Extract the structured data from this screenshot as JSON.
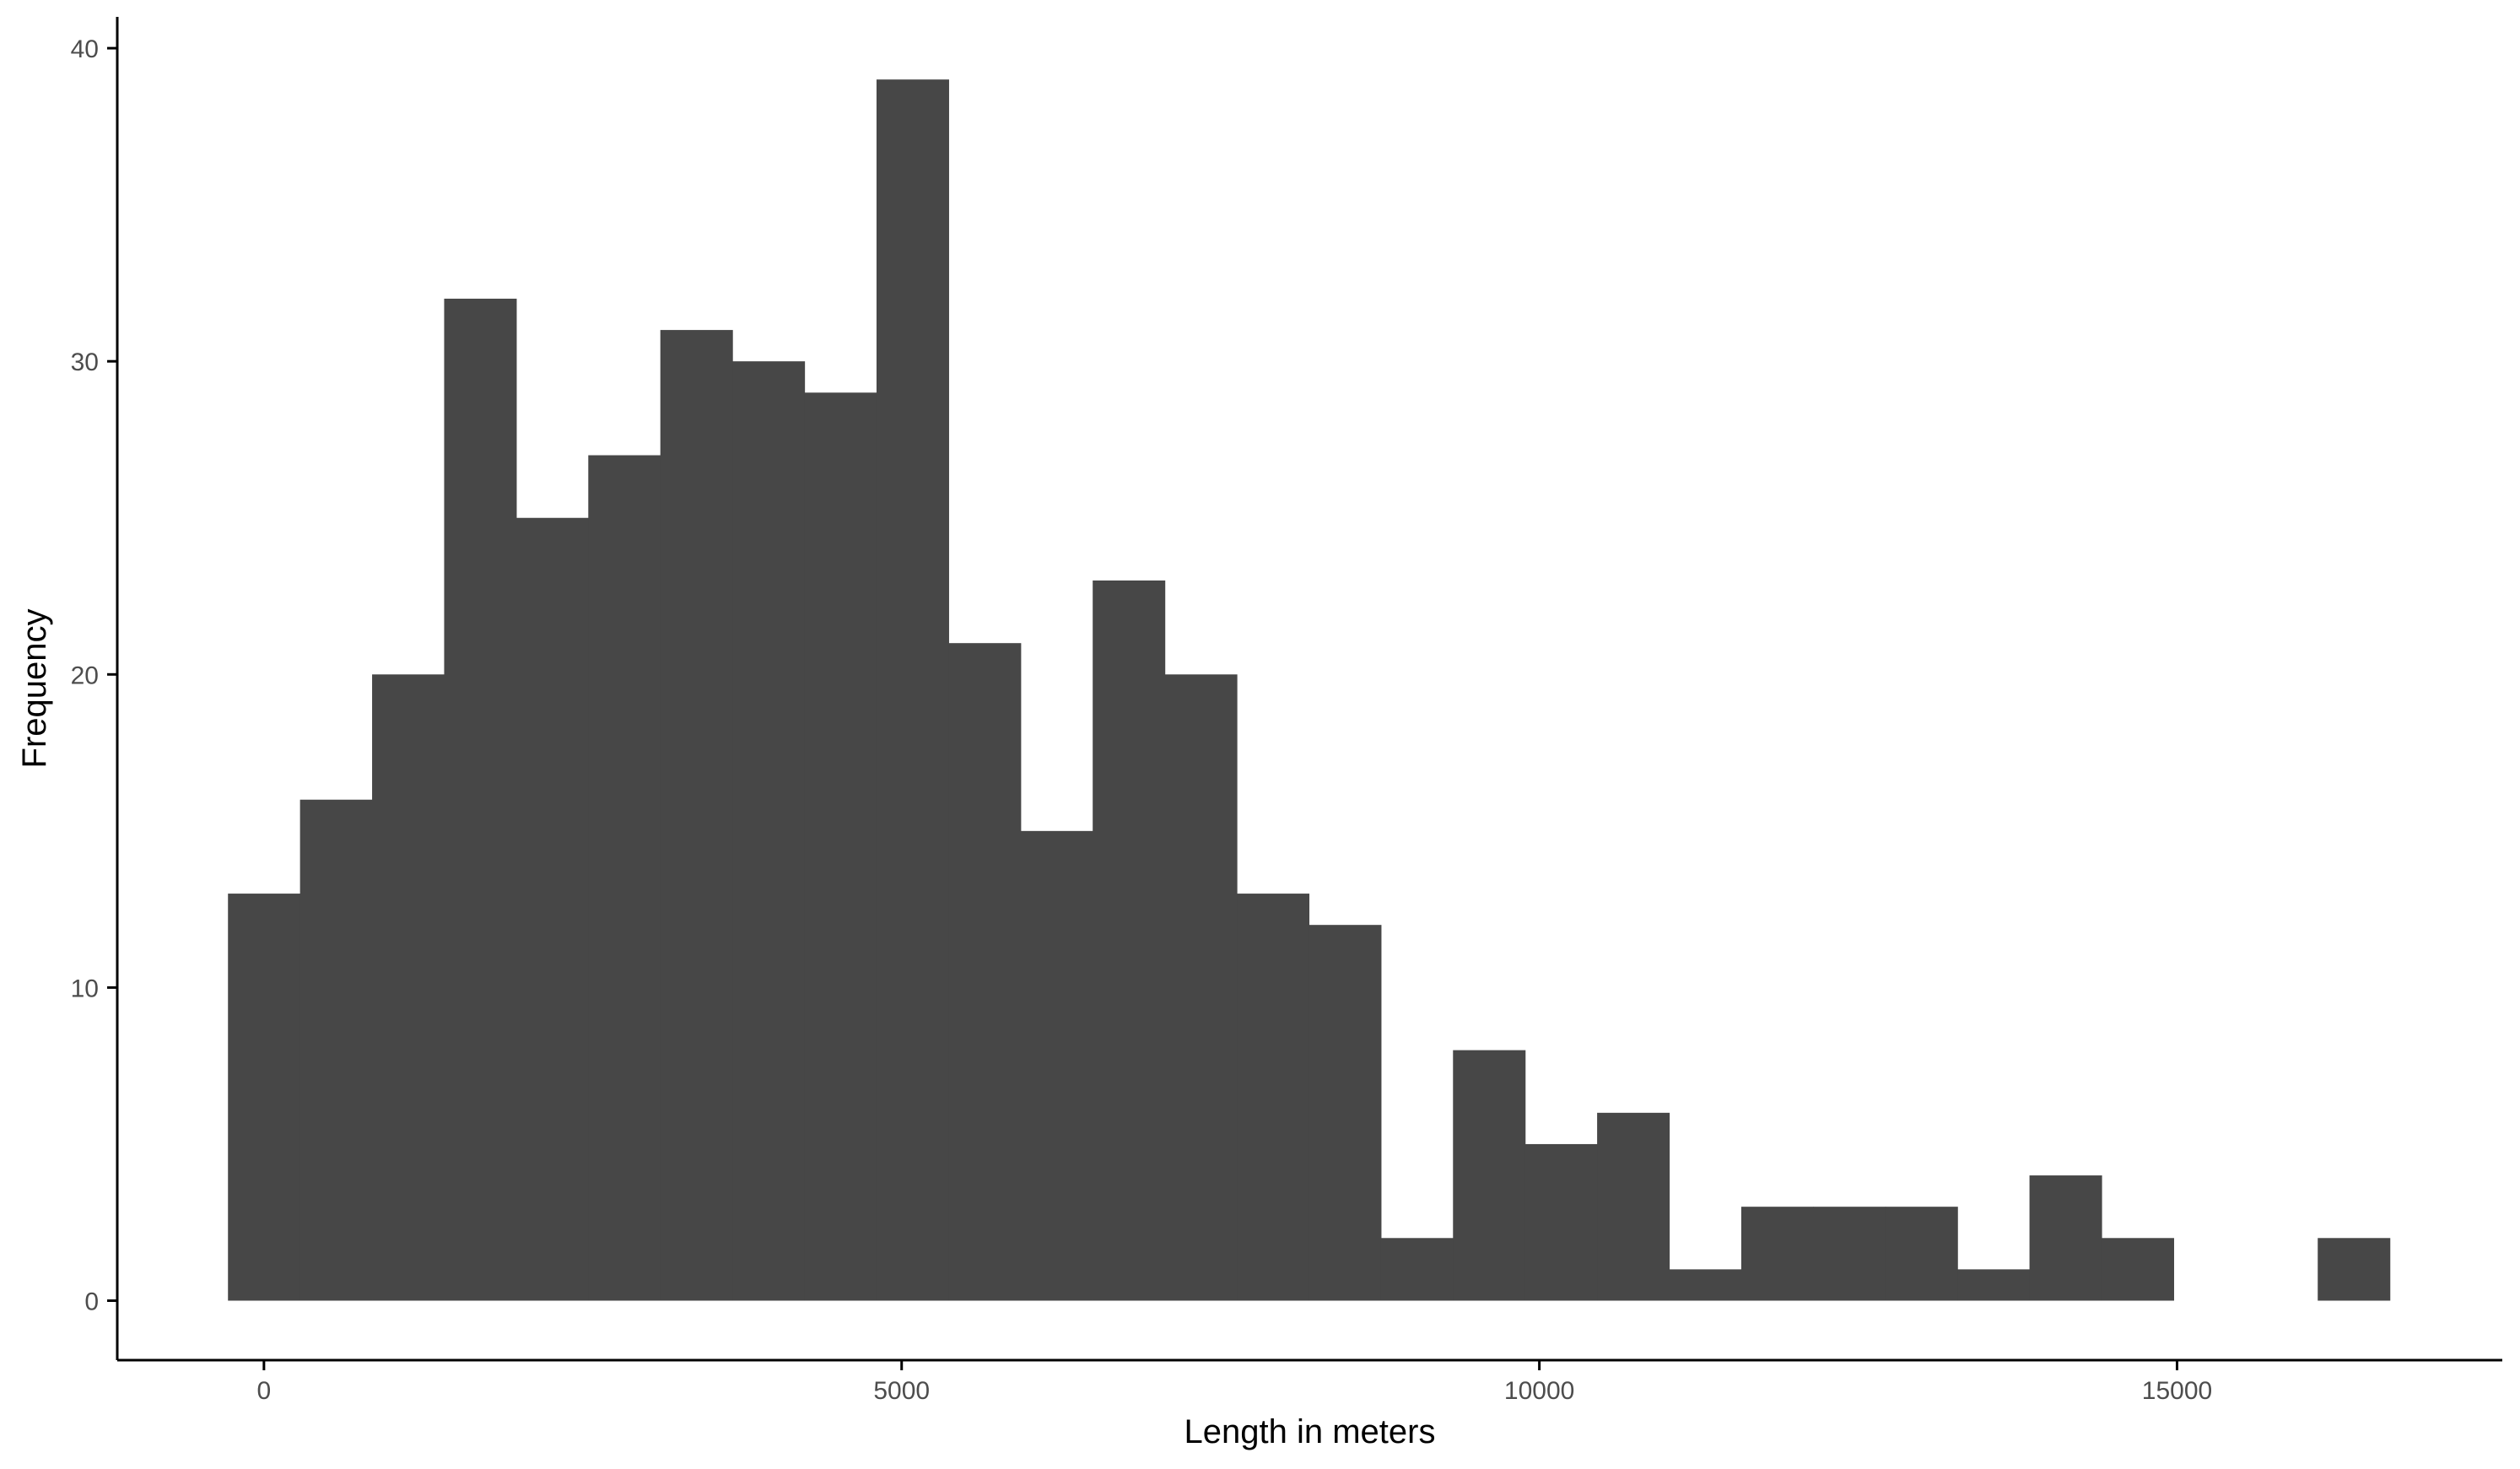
{
  "chart_data": {
    "type": "bar",
    "title": "",
    "xlabel": "Length in meters",
    "ylabel": "Frequency",
    "bin_width": 565,
    "bins": [
      {
        "x0": -282,
        "x1": 283,
        "count": 13
      },
      {
        "x0": 283,
        "x1": 848,
        "count": 16
      },
      {
        "x0": 848,
        "x1": 1413,
        "count": 20
      },
      {
        "x0": 1413,
        "x1": 1978,
        "count": 32
      },
      {
        "x0": 1978,
        "x1": 2543,
        "count": 25
      },
      {
        "x0": 2543,
        "x1": 3108,
        "count": 27
      },
      {
        "x0": 3108,
        "x1": 3673,
        "count": 31
      },
      {
        "x0": 3673,
        "x1": 4238,
        "count": 30
      },
      {
        "x0": 4238,
        "x1": 4803,
        "count": 29
      },
      {
        "x0": 4803,
        "x1": 5368,
        "count": 39
      },
      {
        "x0": 5368,
        "x1": 5933,
        "count": 21
      },
      {
        "x0": 5933,
        "x1": 6498,
        "count": 15
      },
      {
        "x0": 6498,
        "x1": 7063,
        "count": 23
      },
      {
        "x0": 7063,
        "x1": 7628,
        "count": 20
      },
      {
        "x0": 7628,
        "x1": 8193,
        "count": 13
      },
      {
        "x0": 8193,
        "x1": 8758,
        "count": 12
      },
      {
        "x0": 8758,
        "x1": 9323,
        "count": 2
      },
      {
        "x0": 9323,
        "x1": 9888,
        "count": 8
      },
      {
        "x0": 9888,
        "x1": 10453,
        "count": 5
      },
      {
        "x0": 10453,
        "x1": 11018,
        "count": 6
      },
      {
        "x0": 11018,
        "x1": 11583,
        "count": 1
      },
      {
        "x0": 11583,
        "x1": 12148,
        "count": 3
      },
      {
        "x0": 12148,
        "x1": 12713,
        "count": 3
      },
      {
        "x0": 12713,
        "x1": 13278,
        "count": 3
      },
      {
        "x0": 13278,
        "x1": 13843,
        "count": 1
      },
      {
        "x0": 13843,
        "x1": 14408,
        "count": 4
      },
      {
        "x0": 14408,
        "x1": 14973,
        "count": 2
      },
      {
        "x0": 14973,
        "x1": 15538,
        "count": 0
      },
      {
        "x0": 15538,
        "x1": 16103,
        "count": 0
      },
      {
        "x0": 16103,
        "x1": 16668,
        "count": 2
      }
    ],
    "xlim": [
      -1150,
      17550
    ],
    "ylim": [
      -1.9,
      41
    ],
    "x_ticks": [
      0,
      5000,
      10000,
      15000
    ],
    "x_tick_labels": [
      "0",
      "5000",
      "10000",
      "15000"
    ],
    "y_ticks": [
      0,
      10,
      20,
      30,
      40
    ],
    "y_tick_labels": [
      "0",
      "10",
      "20",
      "30",
      "40"
    ],
    "grid": false,
    "legend": "none",
    "colors": {
      "bar_fill": "#474747",
      "axis_line": "#000000",
      "tick_label": "#4d4d4d",
      "background": "#ffffff"
    }
  }
}
